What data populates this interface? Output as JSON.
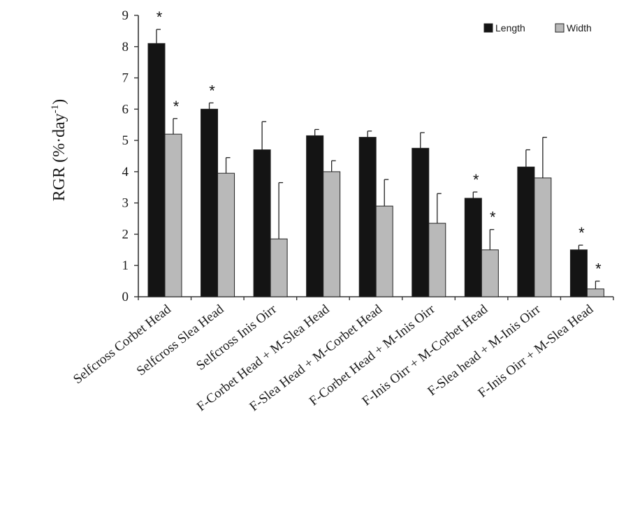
{
  "chart_data": {
    "type": "bar",
    "ylabel_main": "RGR (%·day",
    "ylabel_sup": "-1",
    "ylabel_close": ")",
    "xlabel": "",
    "ylim": [
      0,
      9
    ],
    "yticks": [
      "0",
      "1",
      "2",
      "3",
      "4",
      "5",
      "6",
      "7",
      "8",
      "9"
    ],
    "grid": false,
    "legend_position": "top-right",
    "categories": [
      "Selfcross Corbet Head",
      "Selfcross Slea Head",
      "Selfcross Inis Oirr",
      "F-Corbet Head + M-Slea Head",
      "F-Slea Head + M-Corbet Head",
      "F-Corbet Head + M-Inis Oirr",
      "F-Inis Oirr + M-Corbet Head",
      "F-Slea head + M-Inis Oirr",
      "F-Inis Oirr + M-Slea Head"
    ],
    "series": [
      {
        "name": "Length",
        "color": "#141414",
        "values": [
          8.1,
          6.0,
          4.7,
          5.15,
          5.1,
          4.75,
          3.15,
          4.15,
          1.5
        ],
        "errors": [
          0.45,
          0.2,
          0.9,
          0.2,
          0.2,
          0.5,
          0.2,
          0.55,
          0.15
        ],
        "significant": [
          true,
          true,
          false,
          false,
          false,
          false,
          true,
          false,
          true
        ]
      },
      {
        "name": "Width",
        "color": "#b9b9b9",
        "values": [
          5.2,
          3.95,
          1.85,
          4.0,
          2.9,
          2.35,
          1.5,
          3.8,
          0.25
        ],
        "errors": [
          0.5,
          0.5,
          1.8,
          0.35,
          0.85,
          0.95,
          0.65,
          1.3,
          0.25
        ],
        "significant": [
          true,
          false,
          false,
          false,
          false,
          false,
          true,
          false,
          true
        ]
      }
    ],
    "significance_marker": "*"
  }
}
